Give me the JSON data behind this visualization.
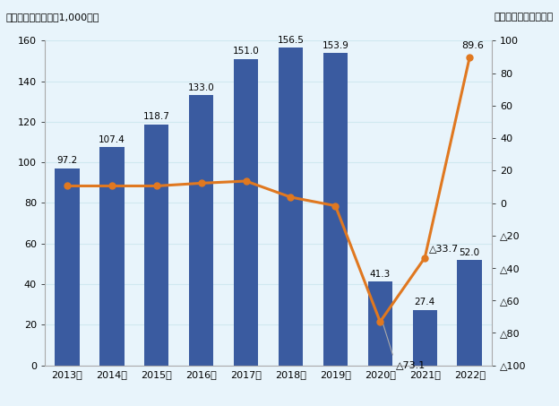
{
  "years": [
    "2013年",
    "2014年",
    "2015年",
    "2016年",
    "2017年",
    "2018年",
    "2019年",
    "2020年",
    "2021年",
    "2022年"
  ],
  "bar_values": [
    97.2,
    107.4,
    118.7,
    133.0,
    151.0,
    156.5,
    153.9,
    41.3,
    27.4,
    52.0
  ],
  "line_values": [
    10.5,
    10.5,
    10.5,
    12.2,
    13.5,
    3.6,
    -1.7,
    -73.1,
    -33.7,
    89.6
  ],
  "line_draw_from": 0,
  "bar_color": "#3A5BA0",
  "line_color": "#E07820",
  "background_color": "#E8F4FB",
  "ylim_left": [
    0,
    160
  ],
  "ylim_right": [
    -100,
    100
  ],
  "left_yticks": [
    0,
    20,
    40,
    60,
    80,
    100,
    120,
    140,
    160
  ],
  "right_yticks": [
    100,
    80,
    60,
    40,
    20,
    0,
    -20,
    -40,
    -60,
    -80,
    -100
  ],
  "right_yticklabels": [
    "100",
    "80",
    "60",
    "40",
    "20",
    "0",
    "△20",
    "△40",
    "△60",
    "△80",
    "△100"
  ],
  "bar_labels": [
    "97.2",
    "107.4",
    "118.7",
    "133.0",
    "151.0",
    "156.5",
    "153.9",
    "41.3",
    "27.4",
    "52.0"
  ],
  "line_label_73": "△73.1",
  "line_label_33": "△33.7",
  "line_label_89": "89.6",
  "title_left": "（入国者数、単位：1,000人）",
  "title_right": "（前年比、単位：％）",
  "gray_line_color": "#AAAAAA",
  "grid_color": "#D0E8F0",
  "spine_color": "#AAAAAA"
}
